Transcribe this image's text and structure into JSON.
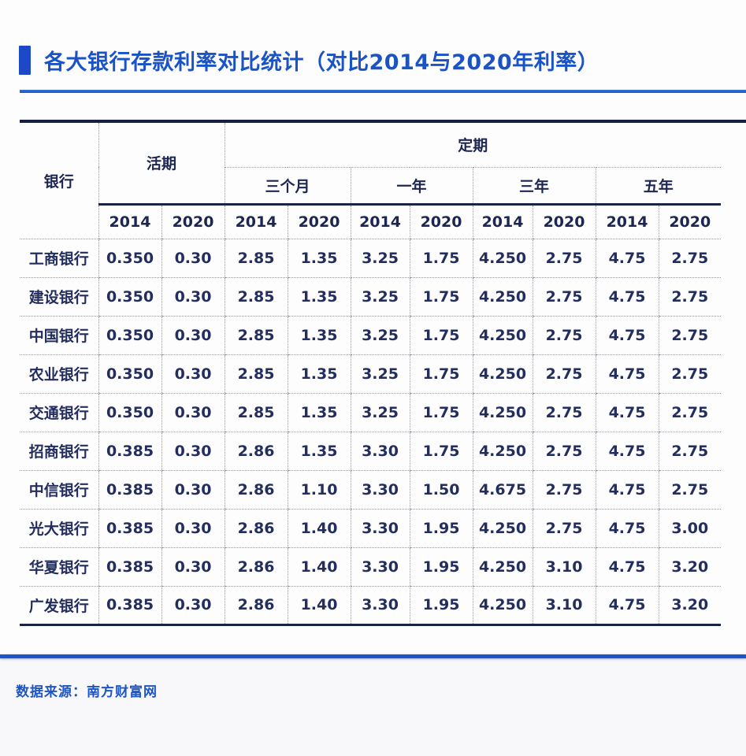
{
  "title": "各大银行存款利率对比统计（对比2014与2020年利率）",
  "table": {
    "bank_header": "银行",
    "demand_header": "活期",
    "fixed_header": "定期",
    "terms": [
      "三个月",
      "一年",
      "三年",
      "五年"
    ],
    "years": [
      "2014",
      "2020",
      "2014",
      "2020",
      "2014",
      "2020",
      "2014",
      "2020",
      "2014",
      "2020"
    ]
  },
  "footer": {
    "source": "数据来源：南方财富网"
  },
  "colors": {
    "accent_blue": "#1a53c6",
    "line_navy": "#1b2446",
    "text_navy": "#232d5e",
    "dotted_gray": "#98989e"
  },
  "chart_data": {
    "type": "table",
    "title": "各大银行存款利率对比统计（对比2014与2020年利率）",
    "column_groups": [
      {
        "label": "活期",
        "sub": [
          "2014",
          "2020"
        ]
      },
      {
        "label": "定期",
        "terms": [
          {
            "label": "三个月",
            "sub": [
              "2014",
              "2020"
            ]
          },
          {
            "label": "一年",
            "sub": [
              "2014",
              "2020"
            ]
          },
          {
            "label": "三年",
            "sub": [
              "2014",
              "2020"
            ]
          },
          {
            "label": "五年",
            "sub": [
              "2014",
              "2020"
            ]
          }
        ]
      }
    ],
    "rows": [
      {
        "bank": "工商银行",
        "values": [
          "0.350",
          "0.30",
          "2.85",
          "1.35",
          "3.25",
          "1.75",
          "4.250",
          "2.75",
          "4.75",
          "2.75"
        ]
      },
      {
        "bank": "建设银行",
        "values": [
          "0.350",
          "0.30",
          "2.85",
          "1.35",
          "3.25",
          "1.75",
          "4.250",
          "2.75",
          "4.75",
          "2.75"
        ]
      },
      {
        "bank": "中国银行",
        "values": [
          "0.350",
          "0.30",
          "2.85",
          "1.35",
          "3.25",
          "1.75",
          "4.250",
          "2.75",
          "4.75",
          "2.75"
        ]
      },
      {
        "bank": "农业银行",
        "values": [
          "0.350",
          "0.30",
          "2.85",
          "1.35",
          "3.25",
          "1.75",
          "4.250",
          "2.75",
          "4.75",
          "2.75"
        ]
      },
      {
        "bank": "交通银行",
        "values": [
          "0.350",
          "0.30",
          "2.85",
          "1.35",
          "3.25",
          "1.75",
          "4.250",
          "2.75",
          "4.75",
          "2.75"
        ]
      },
      {
        "bank": "招商银行",
        "values": [
          "0.385",
          "0.30",
          "2.86",
          "1.35",
          "3.30",
          "1.75",
          "4.250",
          "2.75",
          "4.75",
          "2.75"
        ]
      },
      {
        "bank": "中信银行",
        "values": [
          "0.385",
          "0.30",
          "2.86",
          "1.10",
          "3.30",
          "1.50",
          "4.675",
          "2.75",
          "4.75",
          "2.75"
        ]
      },
      {
        "bank": "光大银行",
        "values": [
          "0.385",
          "0.30",
          "2.86",
          "1.40",
          "3.30",
          "1.95",
          "4.250",
          "2.75",
          "4.75",
          "3.00"
        ]
      },
      {
        "bank": "华夏银行",
        "values": [
          "0.385",
          "0.30",
          "2.86",
          "1.40",
          "3.30",
          "1.95",
          "4.250",
          "3.10",
          "4.75",
          "3.20"
        ]
      },
      {
        "bank": "广发银行",
        "values": [
          "0.385",
          "0.30",
          "2.86",
          "1.40",
          "3.30",
          "1.95",
          "4.250",
          "3.10",
          "4.75",
          "3.20"
        ]
      }
    ],
    "source": "数据来源：南方财富网"
  }
}
